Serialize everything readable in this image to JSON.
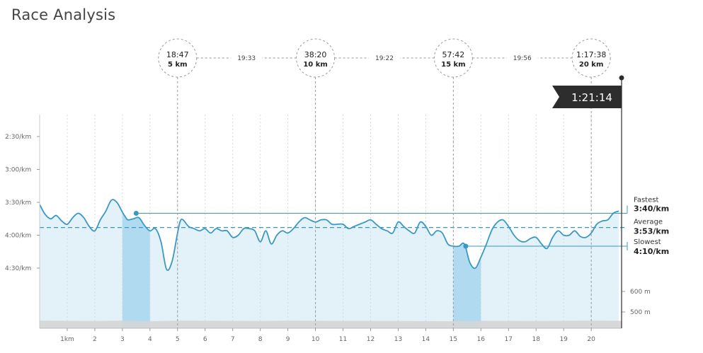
{
  "title": "Race Analysis",
  "chart_data": {
    "type": "line",
    "xlim": [
      0,
      21.1
    ],
    "x_ticks": [
      {
        "value": 1,
        "label": "1km"
      },
      {
        "value": 2,
        "label": "2"
      },
      {
        "value": 3,
        "label": "3"
      },
      {
        "value": 4,
        "label": "4"
      },
      {
        "value": 5,
        "label": "5"
      },
      {
        "value": 6,
        "label": "6"
      },
      {
        "value": 7,
        "label": "7"
      },
      {
        "value": 8,
        "label": "8"
      },
      {
        "value": 9,
        "label": "9"
      },
      {
        "value": 10,
        "label": "10"
      },
      {
        "value": 11,
        "label": "11"
      },
      {
        "value": 12,
        "label": "12"
      },
      {
        "value": 13,
        "label": "13"
      },
      {
        "value": 14,
        "label": "14"
      },
      {
        "value": 15,
        "label": "15"
      },
      {
        "value": 16,
        "label": "16"
      },
      {
        "value": 17,
        "label": "17"
      },
      {
        "value": 18,
        "label": "18"
      },
      {
        "value": 19,
        "label": "19"
      },
      {
        "value": 20,
        "label": "20"
      }
    ],
    "pace_ticks": [
      {
        "value": 150,
        "label": "2:30/km"
      },
      {
        "value": 180,
        "label": "3:00/km"
      },
      {
        "value": 210,
        "label": "3:30/km"
      },
      {
        "value": 240,
        "label": "4:00/km"
      },
      {
        "value": 270,
        "label": "4:30/km"
      }
    ],
    "elevation_ticks": [
      {
        "value": 600,
        "label": "600 m"
      },
      {
        "value": 500,
        "label": "500 m"
      }
    ],
    "pace_series": {
      "unit": "seconds per km",
      "x": [
        0,
        0.2,
        0.4,
        0.6,
        0.8,
        1.0,
        1.2,
        1.4,
        1.6,
        1.8,
        2.0,
        2.2,
        2.4,
        2.6,
        2.8,
        3.0,
        3.1,
        3.2,
        3.4,
        3.6,
        3.8,
        4.0,
        4.2,
        4.4,
        4.6,
        4.8,
        5.0,
        5.1,
        5.2,
        5.4,
        5.6,
        5.8,
        6.0,
        6.2,
        6.4,
        6.6,
        6.8,
        7.0,
        7.2,
        7.4,
        7.6,
        7.8,
        8.0,
        8.2,
        8.4,
        8.6,
        8.8,
        9.0,
        9.2,
        9.4,
        9.6,
        9.8,
        10.0,
        10.2,
        10.4,
        10.6,
        10.8,
        11.0,
        11.2,
        11.4,
        11.6,
        11.8,
        12.0,
        12.2,
        12.4,
        12.6,
        12.8,
        13.0,
        13.2,
        13.4,
        13.6,
        13.8,
        14.0,
        14.2,
        14.4,
        14.6,
        14.8,
        15.0,
        15.2,
        15.4,
        15.6,
        15.8,
        16.0,
        16.2,
        16.4,
        16.6,
        16.8,
        17.0,
        17.2,
        17.4,
        17.6,
        17.8,
        18.0,
        18.2,
        18.4,
        18.6,
        18.8,
        19.0,
        19.2,
        19.4,
        19.6,
        19.8,
        20.0,
        20.2,
        20.4,
        20.6,
        20.8,
        21.0
      ],
      "values": [
        212,
        221,
        225,
        222,
        227,
        230,
        224,
        220,
        224,
        232,
        236,
        226,
        218,
        208,
        210,
        219,
        223,
        226,
        225,
        224,
        231,
        236,
        234,
        246,
        271,
        264,
        238,
        227,
        226,
        232,
        234,
        236,
        234,
        238,
        234,
        236,
        236,
        242,
        240,
        234,
        234,
        236,
        246,
        236,
        248,
        240,
        236,
        238,
        234,
        228,
        224,
        226,
        228,
        226,
        226,
        230,
        230,
        230,
        234,
        232,
        230,
        228,
        226,
        230,
        234,
        236,
        238,
        228,
        232,
        236,
        238,
        228,
        232,
        240,
        236,
        238,
        248,
        250,
        250,
        248,
        265,
        270,
        260,
        248,
        235,
        228,
        226,
        232,
        240,
        245,
        246,
        243,
        242,
        248,
        252,
        242,
        236,
        240,
        240,
        236,
        241,
        242,
        238,
        230,
        227,
        226,
        220,
        218
      ]
    },
    "elevation_series": {
      "unit": "m",
      "x": [
        0,
        2,
        3,
        4,
        5,
        8,
        9,
        10,
        13,
        15,
        16,
        18,
        20,
        21.1
      ],
      "values": [
        458,
        456,
        458,
        455,
        458,
        456,
        458,
        457,
        456,
        455,
        457,
        456,
        458,
        457
      ]
    },
    "highlights": [
      {
        "from": 3.0,
        "to": 4.0
      },
      {
        "from": 15.0,
        "to": 16.0
      }
    ],
    "split_markers": [
      {
        "km": 5,
        "time": "18:47",
        "label": "5 km"
      },
      {
        "km": 10,
        "time": "38:20",
        "label": "10 km"
      },
      {
        "km": 15,
        "time": "57:42",
        "label": "15 km"
      },
      {
        "km": 20,
        "time": "1:17:38",
        "label": "20 km"
      }
    ],
    "split_times": [
      {
        "from": 5,
        "to": 10,
        "time": "19:33"
      },
      {
        "from": 10,
        "to": 15,
        "time": "19:22"
      },
      {
        "from": 15,
        "to": 20,
        "time": "19:56"
      }
    ],
    "finish": {
      "km": 21.0975,
      "time": "1:21:14"
    },
    "stats": {
      "fastest": {
        "label": "Fastest",
        "value": "3:40/km",
        "pace": 220,
        "at_km": 3.5
      },
      "average": {
        "label": "Average",
        "value": "3:53/km",
        "pace": 233
      },
      "slowest": {
        "label": "Slowest",
        "value": "4:10/km",
        "pace": 250,
        "at_km": 15.45
      }
    },
    "colors": {
      "line": "#3a98c4",
      "fill": "#e3f1f9",
      "highlight": "#b0daf0",
      "axis": "#888888",
      "finish_flag": "#2d2d2d"
    }
  }
}
